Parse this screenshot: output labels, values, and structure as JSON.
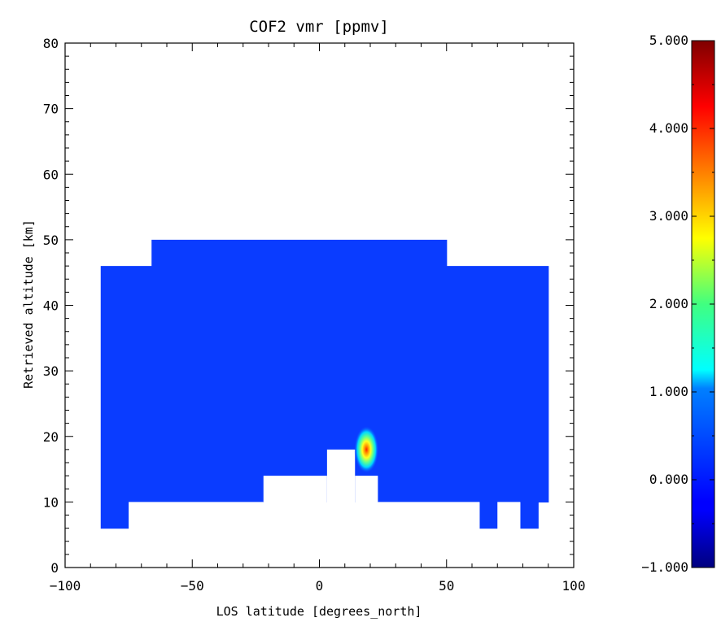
{
  "chart_data": {
    "type": "heatmap",
    "title": "COF2 vmr [ppmv]",
    "xlabel": "LOS latitude [degrees_north]",
    "ylabel": "Retrieved altitude [km]",
    "xlim": [
      -100,
      100
    ],
    "ylim": [
      0,
      80
    ],
    "x_ticks": [
      -100,
      -50,
      0,
      50,
      100
    ],
    "x_tick_labels": [
      "−100",
      "−50",
      "0",
      "50",
      "100"
    ],
    "y_ticks": [
      0,
      10,
      20,
      30,
      40,
      50,
      60,
      70,
      80
    ],
    "y_tick_labels": [
      "0",
      "10",
      "20",
      "30",
      "40",
      "50",
      "60",
      "70",
      "80"
    ],
    "background_value": 0.0,
    "data_regions": [
      {
        "x": [
          -86,
          -66
        ],
        "y": [
          6,
          46
        ]
      },
      {
        "x": [
          -66,
          50
        ],
        "y": [
          10,
          50
        ]
      },
      {
        "x": [
          50,
          90
        ],
        "y": [
          10,
          46
        ]
      },
      {
        "x": [
          -75,
          -22
        ],
        "y": [
          10,
          10
        ]
      },
      {
        "x": [
          -22,
          3
        ],
        "y": [
          14,
          14
        ]
      },
      {
        "x": [
          3,
          14
        ],
        "y": [
          18,
          18
        ]
      },
      {
        "x": [
          14,
          23
        ],
        "y": [
          14,
          14
        ]
      },
      {
        "x": [
          63,
          70
        ],
        "y": [
          6,
          10
        ]
      },
      {
        "x": [
          79,
          86
        ],
        "y": [
          6,
          10
        ]
      }
    ],
    "gaps": [
      {
        "x": [
          -75,
          -22
        ],
        "y": [
          0,
          10
        ]
      },
      {
        "x": [
          -22,
          3
        ],
        "y": [
          0,
          14
        ]
      },
      {
        "x": [
          3,
          14
        ],
        "y": [
          0,
          18
        ]
      },
      {
        "x": [
          14,
          23
        ],
        "y": [
          0,
          14
        ]
      },
      {
        "x": [
          23,
          63
        ],
        "y": [
          0,
          10
        ]
      },
      {
        "x": [
          70,
          79
        ],
        "y": [
          0,
          10
        ]
      }
    ],
    "hotspot": {
      "x": 18.5,
      "y": 18,
      "peak_value": 4.5
    },
    "colorbar": {
      "range": [
        -1,
        5
      ],
      "ticks": [
        -1,
        0,
        1,
        2,
        3,
        4,
        5
      ],
      "tick_labels": [
        "−1.000",
        "0.000",
        "1.000",
        "2.000",
        "3.000",
        "4.000",
        "5.000"
      ],
      "colormap": "jet"
    }
  }
}
